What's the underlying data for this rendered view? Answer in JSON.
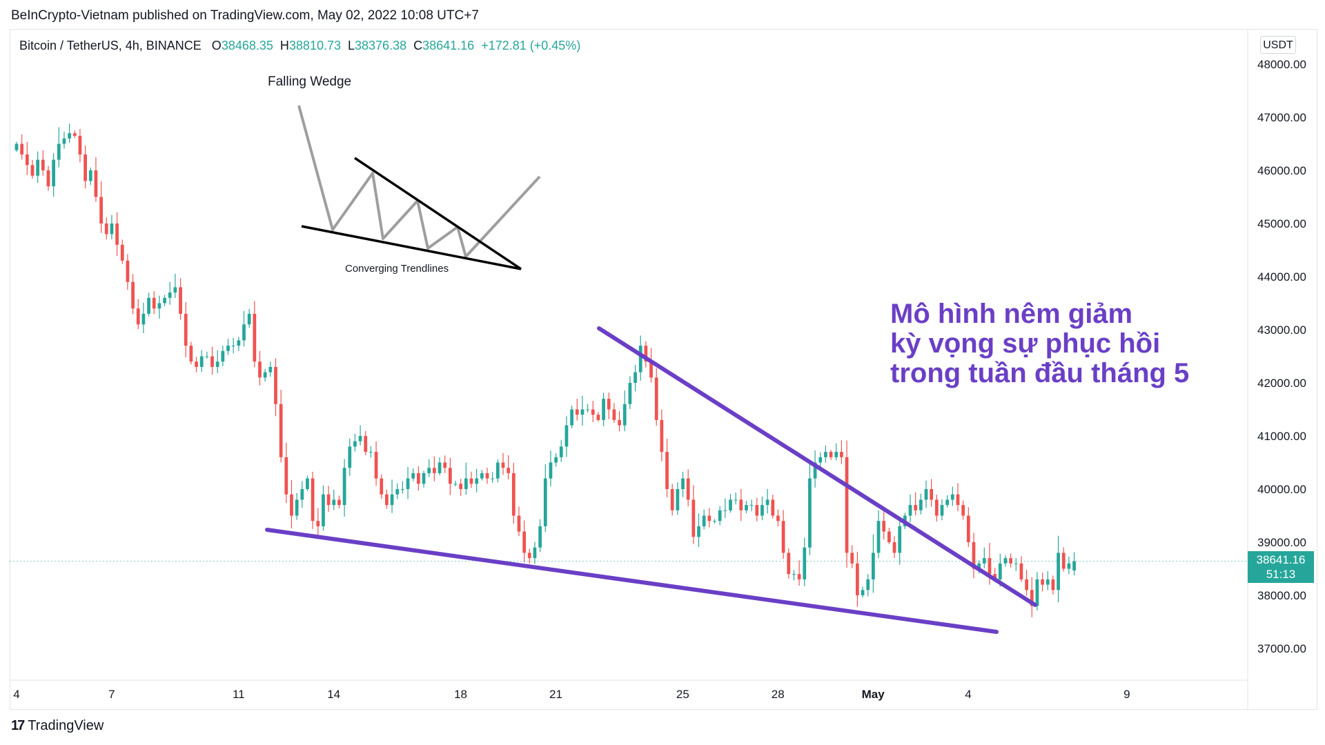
{
  "publisher": "BeInCrypto-Vietnam published on TradingView.com, May 02, 2022 10:08 UTC+7",
  "footer": {
    "brand": "TradingView"
  },
  "symbol": {
    "name": "Bitcoin / TetherUS, 4h, BINANCE",
    "o_label": "O",
    "o": "38468.35",
    "h_label": "H",
    "h": "38810.73",
    "l_label": "L",
    "l": "38376.38",
    "c_label": "C",
    "c": "38641.16",
    "change": "+172.81 (+0.45%)"
  },
  "currency": "USDT",
  "last_price": {
    "value": "38641.16",
    "countdown": "51:13"
  },
  "colors": {
    "up": "#26a69a",
    "down": "#ef5350",
    "trendline": "#6a3fc6",
    "annotation": "#6a3fc6"
  },
  "annotation": {
    "lines": [
      "Mô hình nêm giảm",
      "kỳ vọng sự phục hồi",
      "trong tuần đầu tháng 5"
    ]
  },
  "inset": {
    "title": "Falling Wedge",
    "caption": "Converging Trendlines"
  },
  "chart_data": {
    "type": "candlestick",
    "title": "",
    "ylim": [
      36300,
      48600
    ],
    "y_ticks": [
      37000,
      38000,
      39000,
      40000,
      41000,
      42000,
      43000,
      44000,
      45000,
      46000,
      47000,
      48000
    ],
    "y_tick_labels": [
      "37000.00",
      "38000.00",
      "39000.00",
      "40000.00",
      "41000.00",
      "42000.00",
      "43000.00",
      "44000.00",
      "45000.00",
      "46000.00",
      "47000.00",
      "48000.00"
    ],
    "x_tick_labels": [
      "4",
      "7",
      "11",
      "14",
      "18",
      "21",
      "25",
      "28",
      "May",
      "4",
      "9"
    ],
    "x_tick_days": [
      4,
      7,
      11,
      14,
      18,
      21,
      25,
      28,
      31,
      34,
      39
    ],
    "x_range_days": [
      4,
      41.2
    ],
    "bar_period_days": 0.1667,
    "first_bar_day": 4.0,
    "closes": [
      46500,
      46300,
      46100,
      45900,
      46200,
      46000,
      45700,
      46200,
      46500,
      46600,
      46700,
      46650,
      46300,
      45800,
      46000,
      45500,
      45000,
      44800,
      45000,
      44600,
      44300,
      43900,
      43400,
      43100,
      43300,
      43600,
      43400,
      43500,
      43600,
      43700,
      43800,
      43300,
      42700,
      42400,
      42300,
      42500,
      42500,
      42300,
      42400,
      42600,
      42700,
      42700,
      42800,
      43100,
      43300,
      42400,
      42100,
      42200,
      42300,
      41600,
      40600,
      39900,
      39500,
      39800,
      40000,
      40200,
      39400,
      39300,
      39900,
      39700,
      39800,
      39700,
      40400,
      40800,
      40900,
      41000,
      40700,
      40700,
      40200,
      39900,
      39700,
      39900,
      40000,
      40000,
      40200,
      40300,
      40100,
      40300,
      40400,
      40300,
      40500,
      40400,
      40100,
      40100,
      40000,
      40200,
      40100,
      40200,
      40300,
      40200,
      40200,
      40500,
      40400,
      40300,
      39500,
      39200,
      38800,
      38700,
      38900,
      39300,
      40200,
      40500,
      40600,
      40800,
      41200,
      41500,
      41400,
      41500,
      41500,
      41400,
      41300,
      41700,
      41500,
      41300,
      41200,
      41600,
      42000,
      42200,
      42700,
      42400,
      42100,
      41300,
      40700,
      40000,
      39600,
      40000,
      40200,
      39800,
      39100,
      39300,
      39500,
      39400,
      39400,
      39600,
      39600,
      39800,
      39800,
      39600,
      39700,
      39700,
      39500,
      39700,
      39800,
      39500,
      39400,
      38800,
      38400,
      38400,
      38300,
      38900,
      40200,
      40500,
      40600,
      40700,
      40600,
      40700,
      40600,
      38800,
      38600,
      38000,
      38100,
      38300,
      38800,
      39400,
      39200,
      39000,
      38800,
      39300,
      39500,
      39700,
      39600,
      39800,
      40000,
      39800,
      39500,
      39700,
      39800,
      39900,
      39700,
      39500,
      39000,
      38500,
      38600,
      38700,
      38400,
      38300,
      38600,
      38700,
      38600,
      38600,
      38300,
      38100,
      37800,
      38300,
      38200,
      38300,
      38100,
      38800,
      38500,
      38600,
      38650
    ],
    "note_ohlc_last": {
      "o": 38468.35,
      "h": 38810.73,
      "l": 38376.38,
      "c": 38641.16
    }
  }
}
